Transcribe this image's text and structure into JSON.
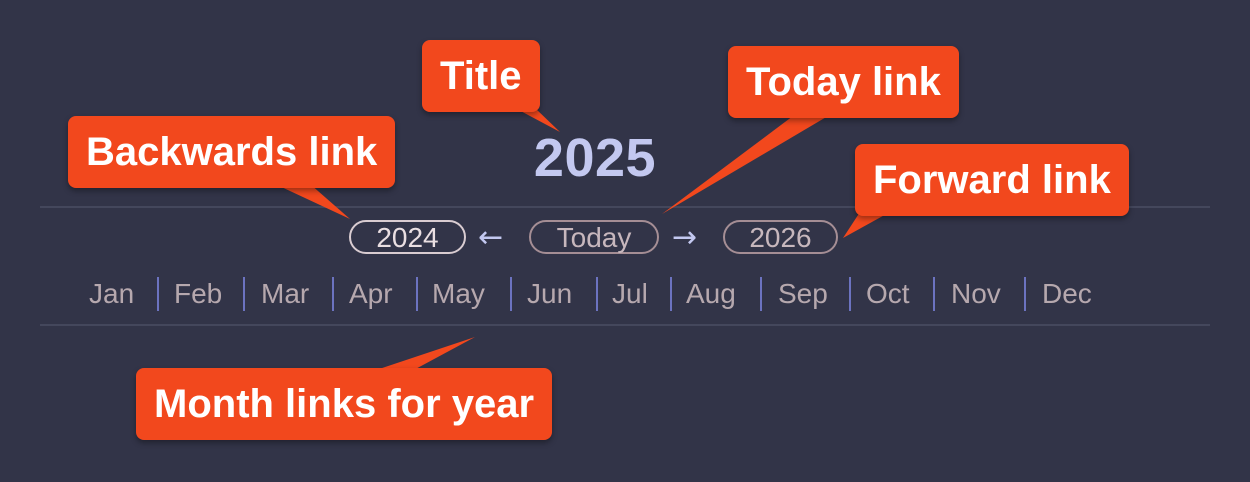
{
  "title": "2025",
  "nav": {
    "back_label": "2024",
    "back_arrow": "←",
    "today_label": "Today",
    "forward_arrow": "→",
    "forward_label": "2026"
  },
  "months": [
    "Jan",
    "Feb",
    "Mar",
    "Apr",
    "May",
    "Jun",
    "Jul",
    "Aug",
    "Sep",
    "Oct",
    "Nov",
    "Dec"
  ],
  "callouts": {
    "title": "Title",
    "today": "Today link",
    "backwards": "Backwards link",
    "forward": "Forward link",
    "months": "Month links for year"
  },
  "colors": {
    "background": "#323448",
    "callout": "#f2481d",
    "title": "#c3c8f0",
    "separator": "#6c73c0"
  }
}
